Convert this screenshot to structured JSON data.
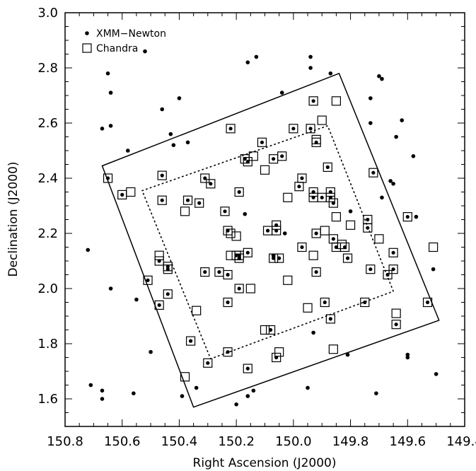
{
  "chart_data": {
    "type": "scatter",
    "xlabel": "Right Ascension (J2000)",
    "ylabel": "Declination (J2000)",
    "xlim": [
      150.8,
      149.4
    ],
    "ylim": [
      1.5,
      3.0
    ],
    "x_ticks": [
      "150.8",
      "150.6",
      "150.4",
      "150.2",
      "150.0",
      "149.8",
      "149.6",
      "149.4"
    ],
    "y_ticks": [
      "1.6",
      "1.8",
      "2.0",
      "2.2",
      "2.4",
      "2.6",
      "2.8",
      "3.0"
    ],
    "legend": [
      {
        "label": "XMM−Newton",
        "marker": "dot"
      },
      {
        "label": "Chandra",
        "marker": "square"
      }
    ],
    "regions": [
      {
        "style": "solid",
        "points": [
          [
            150.67,
            2.445
          ],
          [
            149.84,
            2.78
          ],
          [
            149.49,
            1.885
          ],
          [
            150.35,
            1.57
          ]
        ]
      },
      {
        "style": "dotted",
        "points": [
          [
            150.53,
            2.355
          ],
          [
            149.88,
            2.59
          ],
          [
            149.65,
            1.99
          ],
          [
            150.29,
            1.745
          ]
        ]
      }
    ],
    "series": [
      {
        "name": "XMM−Newton",
        "marker": "dot",
        "points": [
          [
            150.52,
            2.86
          ],
          [
            150.65,
            2.78
          ],
          [
            150.64,
            2.71
          ],
          [
            150.67,
            2.58
          ],
          [
            150.64,
            2.59
          ],
          [
            150.4,
            2.69
          ],
          [
            150.46,
            2.65
          ],
          [
            150.16,
            2.82
          ],
          [
            150.13,
            2.84
          ],
          [
            150.04,
            2.71
          ],
          [
            149.94,
            2.84
          ],
          [
            149.94,
            2.8
          ],
          [
            149.87,
            2.78
          ],
          [
            149.73,
            2.69
          ],
          [
            149.7,
            2.77
          ],
          [
            149.69,
            2.76
          ],
          [
            149.73,
            2.6
          ],
          [
            149.62,
            2.61
          ],
          [
            149.64,
            2.55
          ],
          [
            149.66,
            2.39
          ],
          [
            149.65,
            2.38
          ],
          [
            149.58,
            2.48
          ],
          [
            149.57,
            2.26
          ],
          [
            149.51,
            2.07
          ],
          [
            149.5,
            1.69
          ],
          [
            149.6,
            1.75
          ],
          [
            149.6,
            1.76
          ],
          [
            149.71,
            1.62
          ],
          [
            149.81,
            1.76
          ],
          [
            149.93,
            1.84
          ],
          [
            150.14,
            1.63
          ],
          [
            150.16,
            1.61
          ],
          [
            150.2,
            1.58
          ],
          [
            150.34,
            1.64
          ],
          [
            150.39,
            1.61
          ],
          [
            150.56,
            1.62
          ],
          [
            150.67,
            1.63
          ],
          [
            150.67,
            1.6
          ],
          [
            150.71,
            1.65
          ],
          [
            150.5,
            1.77
          ],
          [
            150.55,
            1.96
          ],
          [
            150.64,
            2.0
          ],
          [
            150.72,
            2.14
          ],
          [
            150.58,
            2.5
          ],
          [
            150.43,
            2.56
          ],
          [
            150.42,
            2.52
          ],
          [
            150.37,
            2.53
          ],
          [
            150.17,
            2.27
          ],
          [
            150.07,
            2.12
          ],
          [
            150.03,
            2.2
          ],
          [
            149.95,
            1.64
          ],
          [
            149.8,
            2.28
          ],
          [
            149.69,
            2.33
          ]
        ]
      },
      {
        "name": "Chandra",
        "marker": "square",
        "filled_dot": [
          [
            150.65,
            2.4
          ],
          [
            150.6,
            2.34
          ],
          [
            150.46,
            2.41
          ],
          [
            150.46,
            2.32
          ],
          [
            150.37,
            2.32
          ],
          [
            150.33,
            2.31
          ],
          [
            150.31,
            2.4
          ],
          [
            150.29,
            2.38
          ],
          [
            150.22,
            2.58
          ],
          [
            150.19,
            2.35
          ],
          [
            150.24,
            2.28
          ],
          [
            150.23,
            2.21
          ],
          [
            150.17,
            2.47
          ],
          [
            150.16,
            2.46
          ],
          [
            150.11,
            2.53
          ],
          [
            150.07,
            2.47
          ],
          [
            150.04,
            2.48
          ],
          [
            150.0,
            2.58
          ],
          [
            149.94,
            2.58
          ],
          [
            149.93,
            2.68
          ],
          [
            149.88,
            2.44
          ],
          [
            149.97,
            2.4
          ],
          [
            149.98,
            2.37
          ],
          [
            149.93,
            2.35
          ],
          [
            149.93,
            2.33
          ],
          [
            149.87,
            2.35
          ],
          [
            149.87,
            2.33
          ],
          [
            149.86,
            2.31
          ],
          [
            149.92,
            2.2
          ],
          [
            149.86,
            2.18
          ],
          [
            149.85,
            2.15
          ],
          [
            149.82,
            2.15
          ],
          [
            149.81,
            2.11
          ],
          [
            149.74,
            2.25
          ],
          [
            149.74,
            2.22
          ],
          [
            149.72,
            2.42
          ],
          [
            149.65,
            2.13
          ],
          [
            149.65,
            2.07
          ],
          [
            149.67,
            2.05
          ],
          [
            149.73,
            2.07
          ],
          [
            149.75,
            1.95
          ],
          [
            149.64,
            1.87
          ],
          [
            149.53,
            1.95
          ],
          [
            149.6,
            2.26
          ],
          [
            150.47,
            2.1
          ],
          [
            150.51,
            2.03
          ],
          [
            150.44,
            2.08
          ],
          [
            150.44,
            2.07
          ],
          [
            150.44,
            1.98
          ],
          [
            150.47,
            1.94
          ],
          [
            150.36,
            1.81
          ],
          [
            150.31,
            2.06
          ],
          [
            150.26,
            2.06
          ],
          [
            150.23,
            2.05
          ],
          [
            150.23,
            1.95
          ],
          [
            150.19,
            2.0
          ],
          [
            150.16,
            1.71
          ],
          [
            150.08,
            1.85
          ],
          [
            150.06,
            1.75
          ],
          [
            150.19,
            2.11
          ],
          [
            150.19,
            2.12
          ],
          [
            150.16,
            2.13
          ],
          [
            150.2,
            2.12
          ],
          [
            150.07,
            2.11
          ],
          [
            150.05,
            2.11
          ],
          [
            150.06,
            2.23
          ],
          [
            150.06,
            2.21
          ],
          [
            150.09,
            2.21
          ],
          [
            149.92,
            2.06
          ],
          [
            149.89,
            1.95
          ],
          [
            149.87,
            1.89
          ],
          [
            149.97,
            2.15
          ],
          [
            150.3,
            1.73
          ],
          [
            150.23,
            1.77
          ],
          [
            149.92,
            2.53
          ],
          [
            149.9,
            2.33
          ]
        ],
        "open": [
          [
            150.57,
            2.35
          ],
          [
            150.38,
            2.28
          ],
          [
            150.14,
            2.48
          ],
          [
            150.1,
            2.43
          ],
          [
            150.02,
            2.33
          ],
          [
            149.92,
            2.54
          ],
          [
            149.9,
            2.61
          ],
          [
            149.85,
            2.68
          ],
          [
            149.85,
            2.26
          ],
          [
            149.8,
            2.23
          ],
          [
            149.7,
            2.18
          ],
          [
            149.51,
            2.15
          ],
          [
            150.47,
            2.12
          ],
          [
            150.34,
            1.92
          ],
          [
            150.38,
            1.68
          ],
          [
            150.22,
            2.2
          ],
          [
            150.2,
            2.19
          ],
          [
            150.22,
            2.12
          ],
          [
            150.15,
            2.0
          ],
          [
            150.02,
            2.03
          ],
          [
            149.89,
            2.21
          ],
          [
            149.93,
            2.12
          ],
          [
            149.95,
            1.93
          ],
          [
            149.86,
            1.78
          ],
          [
            150.1,
            1.85
          ],
          [
            150.05,
            1.77
          ],
          [
            149.64,
            1.91
          ],
          [
            149.83,
            2.16
          ]
        ]
      }
    ]
  }
}
